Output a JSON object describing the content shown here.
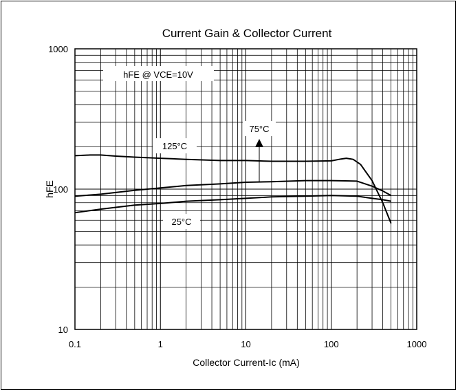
{
  "chart_data": {
    "type": "line",
    "title": "Current Gain & Collector Current",
    "xlabel": "Collector Current-Ic (mA)",
    "ylabel": "hFE",
    "x_scale": "log",
    "y_scale": "log",
    "xlim": [
      0.1,
      1000
    ],
    "ylim": [
      10,
      1000
    ],
    "grid": true,
    "x_ticks": [
      "0.1",
      "1",
      "10",
      "100",
      "1000"
    ],
    "y_ticks": [
      "1000",
      "100",
      "10"
    ],
    "condition_label": "hFE @ VCE=10V",
    "series": [
      {
        "name": "125°C",
        "x": [
          0.1,
          0.15,
          0.2,
          0.3,
          0.5,
          1,
          2,
          5,
          10,
          20,
          50,
          100,
          130,
          150,
          180,
          220,
          300,
          400,
          500
        ],
        "y": [
          173,
          175,
          175,
          172,
          169,
          166,
          163,
          160,
          160,
          158,
          158,
          159,
          164,
          166,
          163,
          150,
          115,
          80,
          57
        ]
      },
      {
        "name": "75°C",
        "x": [
          0.1,
          0.2,
          0.5,
          1,
          2,
          5,
          10,
          20,
          50,
          100,
          200,
          300,
          400,
          500
        ],
        "y": [
          89,
          92,
          98,
          102,
          106,
          109,
          112,
          113,
          115,
          115,
          114,
          105,
          97,
          90
        ]
      },
      {
        "name": "25°C",
        "x": [
          0.1,
          0.2,
          0.5,
          1,
          2,
          5,
          10,
          20,
          50,
          100,
          200,
          300,
          400,
          500
        ],
        "y": [
          68,
          72,
          77,
          79,
          82,
          84,
          86,
          88,
          89,
          90,
          89,
          86,
          84,
          82
        ]
      }
    ],
    "annotations": [
      {
        "text": "125°C",
        "series": "125°C"
      },
      {
        "text": "75°C",
        "series": "75°C",
        "arrow": true
      },
      {
        "text": "25°C",
        "series": "25°C"
      }
    ]
  }
}
